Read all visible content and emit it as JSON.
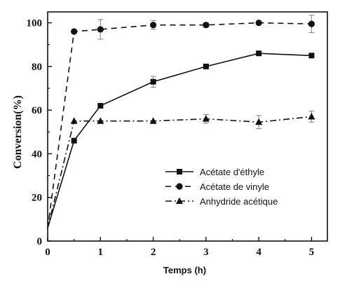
{
  "chart_data": {
    "type": "line",
    "xlabel": "Temps (h)",
    "ylabel": "Conversion(%)",
    "xlim": [
      0,
      5.3
    ],
    "ylim": [
      0,
      105
    ],
    "x_ticks": [
      "0",
      "1",
      "2",
      "3",
      "4",
      "5"
    ],
    "y_ticks": [
      "0",
      "20",
      "40",
      "60",
      "80",
      "100"
    ],
    "grid": false,
    "legend_position": "bottom-right",
    "series": [
      {
        "name": "Acétate d'éthyle",
        "line_style": "solid",
        "marker": "square",
        "x": [
          0,
          0.5,
          1,
          2,
          3,
          4,
          5
        ],
        "y": [
          6,
          46,
          62,
          73,
          80,
          86,
          85
        ],
        "error": [
          0,
          0,
          0,
          2.5,
          0,
          0,
          0
        ]
      },
      {
        "name": "Acétate de vinyle",
        "line_style": "dashed",
        "marker": "circle",
        "x": [
          0,
          0.5,
          1,
          2,
          3,
          4,
          5
        ],
        "y": [
          6,
          96,
          97,
          99,
          99,
          100,
          99.5
        ],
        "error": [
          0,
          0,
          4.5,
          2,
          1,
          0,
          4
        ]
      },
      {
        "name": "Anhydride acétique",
        "line_style": "dashdot",
        "marker": "triangle",
        "x": [
          0,
          0.5,
          1,
          2,
          3,
          4,
          5
        ],
        "y": [
          6,
          55,
          55,
          55,
          56,
          54.5,
          57
        ],
        "error": [
          0,
          0,
          0,
          0,
          2,
          3,
          2.5
        ]
      }
    ]
  }
}
